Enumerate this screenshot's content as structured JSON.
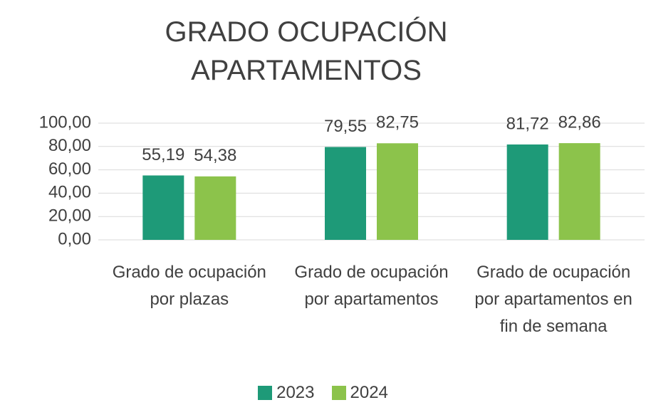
{
  "chart_data": {
    "type": "bar",
    "title": "GRADO OCUPACIÓN APARTAMENTOS",
    "categories": [
      "Grado de ocupación por plazas",
      "Grado de ocupación por apartamentos",
      "Grado de ocupación por apartamentos en fin de semana"
    ],
    "series": [
      {
        "name": "2023",
        "color": "#1e9a78",
        "values": [
          55.19,
          79.55,
          81.72
        ],
        "value_labels": [
          "55,19",
          "79,55",
          "81,72"
        ]
      },
      {
        "name": "2024",
        "color": "#8cc34b",
        "values": [
          54.38,
          82.75,
          82.86
        ],
        "value_labels": [
          "54,38",
          "82,75",
          "82,86"
        ]
      }
    ],
    "ylim": [
      0,
      100
    ],
    "yticks": [
      {
        "value": 0,
        "label": "0,00"
      },
      {
        "value": 20,
        "label": "20,00"
      },
      {
        "value": 40,
        "label": "40,00"
      },
      {
        "value": 60,
        "label": "60,00"
      },
      {
        "value": 80,
        "label": "80,00"
      },
      {
        "value": 100,
        "label": "100,00"
      }
    ],
    "grid": true,
    "legend": "bottom"
  }
}
